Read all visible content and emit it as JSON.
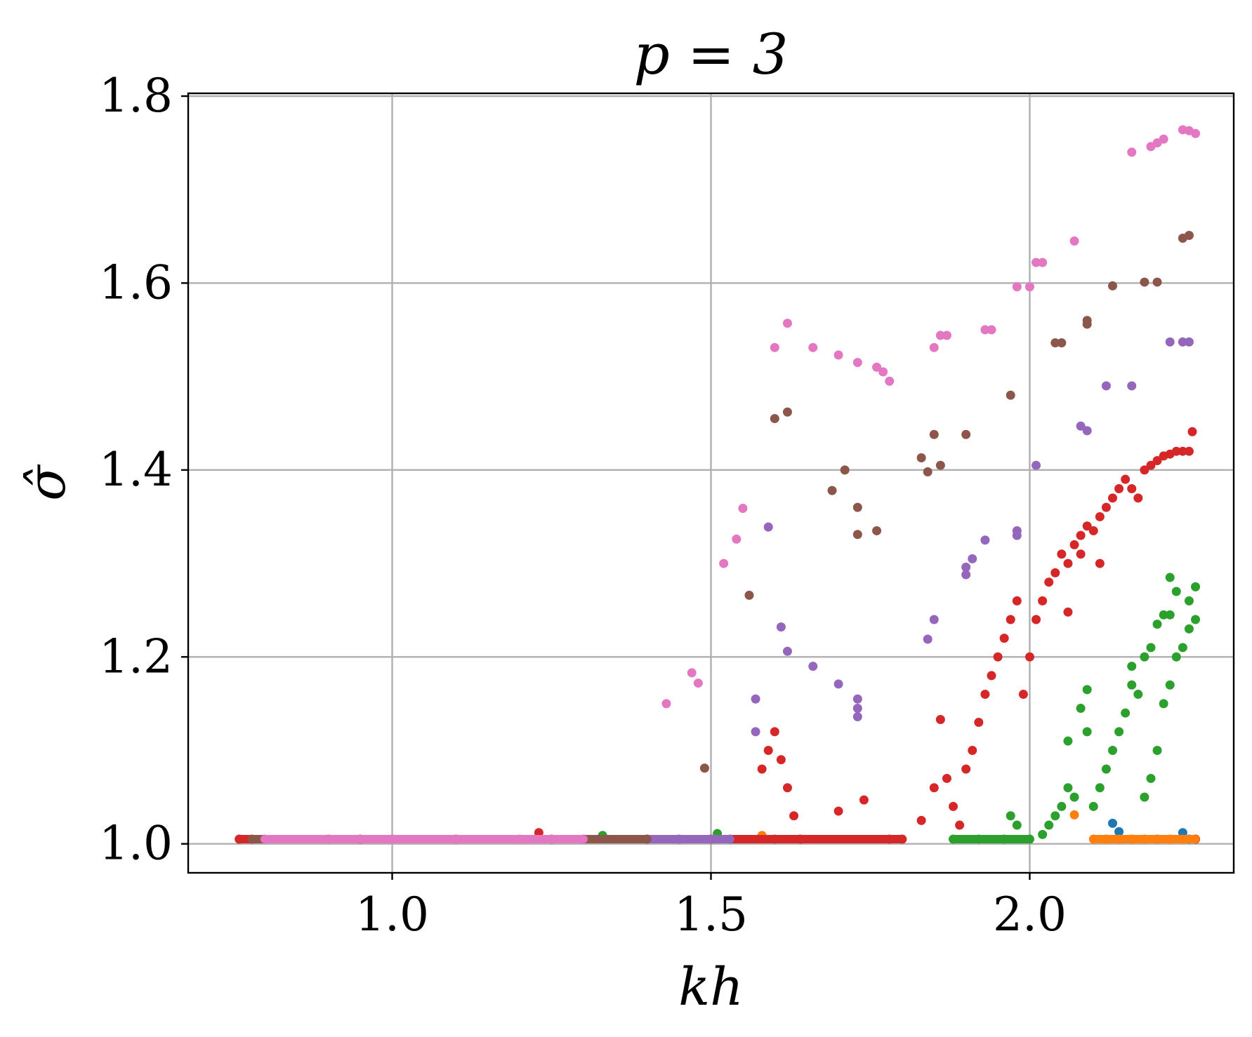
{
  "chart_data": {
    "type": "scatter",
    "title": "p = 3",
    "xlabel": "kh",
    "ylabel": "σ̂",
    "xlim": [
      0.68,
      2.32
    ],
    "ylim": [
      0.969,
      1.803
    ],
    "xticks": [
      1.0,
      1.5,
      2.0
    ],
    "yticks": [
      1.0,
      1.2,
      1.4,
      1.6,
      1.8
    ],
    "xtick_labels": [
      "1.0",
      "1.5",
      "2.0"
    ],
    "ytick_labels": [
      "1.0",
      "1.2",
      "1.4",
      "1.6",
      "1.8"
    ],
    "grid": true,
    "legend": "none",
    "colors": [
      "#1f77b4",
      "#ff7f0e",
      "#2ca02c",
      "#d62728",
      "#9467bd",
      "#8c564b",
      "#e377c2"
    ],
    "series": [
      {
        "color": "#1f77b4",
        "points": [
          [
            2.13,
            1.022
          ],
          [
            2.14,
            1.013
          ],
          [
            2.24,
            1.012
          ],
          [
            2.25,
            1.005
          ],
          [
            2.2,
            1.005
          ]
        ]
      },
      {
        "color": "#ff7f0e",
        "points": [
          [
            1.58,
            1.009
          ],
          [
            2.07,
            1.031
          ],
          [
            2.1,
            1.005
          ],
          [
            2.12,
            1.005
          ],
          [
            2.14,
            1.005
          ],
          [
            2.16,
            1.005
          ],
          [
            2.18,
            1.005
          ],
          [
            2.2,
            1.005
          ],
          [
            2.22,
            1.005
          ],
          [
            2.24,
            1.005
          ],
          [
            2.26,
            1.005
          ]
        ]
      },
      {
        "color": "#2ca02c",
        "points": [
          [
            1.33,
            1.009
          ],
          [
            1.51,
            1.011
          ],
          [
            1.6,
            1.005
          ],
          [
            1.88,
            1.005
          ],
          [
            1.92,
            1.005
          ],
          [
            1.96,
            1.005
          ],
          [
            1.97,
            1.03
          ],
          [
            1.98,
            1.02
          ],
          [
            2.0,
            1.005
          ],
          [
            2.02,
            1.01
          ],
          [
            2.03,
            1.02
          ],
          [
            2.04,
            1.03
          ],
          [
            2.05,
            1.04
          ],
          [
            2.06,
            1.06
          ],
          [
            2.06,
            1.11
          ],
          [
            2.07,
            1.05
          ],
          [
            2.08,
            1.145
          ],
          [
            2.09,
            1.165
          ],
          [
            2.09,
            1.12
          ],
          [
            2.1,
            1.04
          ],
          [
            2.11,
            1.06
          ],
          [
            2.12,
            1.08
          ],
          [
            2.13,
            1.1
          ],
          [
            2.14,
            1.12
          ],
          [
            2.15,
            1.14
          ],
          [
            2.16,
            1.17
          ],
          [
            2.16,
            1.19
          ],
          [
            2.17,
            1.16
          ],
          [
            2.18,
            1.2
          ],
          [
            2.18,
            1.05
          ],
          [
            2.19,
            1.07
          ],
          [
            2.2,
            1.1
          ],
          [
            2.21,
            1.15
          ],
          [
            2.22,
            1.17
          ],
          [
            2.22,
            1.245
          ],
          [
            2.23,
            1.27
          ],
          [
            2.23,
            1.2
          ],
          [
            2.24,
            1.21
          ],
          [
            2.25,
            1.23
          ],
          [
            2.25,
            1.26
          ],
          [
            2.26,
            1.275
          ],
          [
            2.26,
            1.24
          ],
          [
            2.22,
            1.285
          ],
          [
            2.21,
            1.245
          ],
          [
            2.2,
            1.235
          ],
          [
            2.19,
            1.21
          ]
        ]
      },
      {
        "color": "#d62728",
        "points": [
          [
            0.76,
            1.005
          ],
          [
            0.9,
            1.005
          ],
          [
            1.0,
            1.005
          ],
          [
            1.1,
            1.005
          ],
          [
            1.23,
            1.012
          ],
          [
            1.3,
            1.005
          ],
          [
            1.4,
            1.005
          ],
          [
            1.5,
            1.005
          ],
          [
            1.58,
            1.08
          ],
          [
            1.59,
            1.1
          ],
          [
            1.6,
            1.12
          ],
          [
            1.61,
            1.09
          ],
          [
            1.62,
            1.06
          ],
          [
            1.63,
            1.03
          ],
          [
            1.64,
            1.005
          ],
          [
            1.7,
            1.035
          ],
          [
            1.74,
            1.047
          ],
          [
            1.78,
            1.005
          ],
          [
            1.8,
            1.005
          ],
          [
            1.83,
            1.025
          ],
          [
            1.85,
            1.06
          ],
          [
            1.86,
            1.133
          ],
          [
            1.87,
            1.07
          ],
          [
            1.88,
            1.04
          ],
          [
            1.89,
            1.02
          ],
          [
            1.9,
            1.08
          ],
          [
            1.91,
            1.1
          ],
          [
            1.92,
            1.13
          ],
          [
            1.93,
            1.16
          ],
          [
            1.94,
            1.18
          ],
          [
            1.95,
            1.2
          ],
          [
            1.96,
            1.22
          ],
          [
            1.97,
            1.24
          ],
          [
            1.98,
            1.26
          ],
          [
            1.99,
            1.16
          ],
          [
            2.0,
            1.2
          ],
          [
            2.01,
            1.24
          ],
          [
            2.02,
            1.26
          ],
          [
            2.03,
            1.28
          ],
          [
            2.04,
            1.29
          ],
          [
            2.05,
            1.31
          ],
          [
            2.06,
            1.3
          ],
          [
            2.07,
            1.32
          ],
          [
            2.08,
            1.33
          ],
          [
            2.09,
            1.34
          ],
          [
            2.1,
            1.335
          ],
          [
            2.11,
            1.35
          ],
          [
            2.12,
            1.36
          ],
          [
            2.13,
            1.37
          ],
          [
            2.14,
            1.38
          ],
          [
            2.15,
            1.39
          ],
          [
            2.16,
            1.38
          ],
          [
            2.17,
            1.37
          ],
          [
            2.18,
            1.4
          ],
          [
            2.19,
            1.405
          ],
          [
            2.2,
            1.41
          ],
          [
            2.21,
            1.415
          ],
          [
            2.22,
            1.417
          ],
          [
            2.23,
            1.42
          ],
          [
            2.24,
            1.42
          ],
          [
            2.25,
            1.42
          ],
          [
            2.255,
            1.441
          ],
          [
            2.26,
            1.005
          ],
          [
            2.06,
            1.248
          ],
          [
            2.08,
            1.31
          ],
          [
            2.11,
            1.3
          ]
        ]
      },
      {
        "color": "#9467bd",
        "points": [
          [
            1.0,
            1.005
          ],
          [
            1.3,
            1.005
          ],
          [
            1.45,
            1.005
          ],
          [
            1.53,
            1.005
          ],
          [
            1.57,
            1.12
          ],
          [
            1.57,
            1.155
          ],
          [
            1.59,
            1.339
          ],
          [
            1.61,
            1.232
          ],
          [
            1.62,
            1.206
          ],
          [
            1.66,
            1.19
          ],
          [
            1.7,
            1.171
          ],
          [
            1.73,
            1.145
          ],
          [
            1.73,
            1.155
          ],
          [
            1.73,
            1.136
          ],
          [
            1.84,
            1.219
          ],
          [
            1.85,
            1.24
          ],
          [
            1.9,
            1.288
          ],
          [
            1.9,
            1.296
          ],
          [
            1.91,
            1.305
          ],
          [
            1.93,
            1.325
          ],
          [
            1.98,
            1.33
          ],
          [
            1.98,
            1.335
          ],
          [
            2.01,
            1.405
          ],
          [
            2.08,
            1.447
          ],
          [
            2.09,
            1.442
          ],
          [
            2.12,
            1.49
          ],
          [
            2.16,
            1.49
          ],
          [
            2.22,
            1.537
          ],
          [
            2.24,
            1.537
          ],
          [
            2.25,
            1.537
          ]
        ]
      },
      {
        "color": "#8c564b",
        "points": [
          [
            0.78,
            1.005
          ],
          [
            0.95,
            1.005
          ],
          [
            1.1,
            1.005
          ],
          [
            1.25,
            1.005
          ],
          [
            1.4,
            1.005
          ],
          [
            1.49,
            1.081
          ],
          [
            1.56,
            1.266
          ],
          [
            1.6,
            1.455
          ],
          [
            1.62,
            1.462
          ],
          [
            1.69,
            1.378
          ],
          [
            1.71,
            1.4
          ],
          [
            1.73,
            1.36
          ],
          [
            1.73,
            1.331
          ],
          [
            1.76,
            1.335
          ],
          [
            1.83,
            1.413
          ],
          [
            1.84,
            1.398
          ],
          [
            1.85,
            1.438
          ],
          [
            1.86,
            1.405
          ],
          [
            1.9,
            1.438
          ],
          [
            1.97,
            1.48
          ],
          [
            2.04,
            1.536
          ],
          [
            2.05,
            1.536
          ],
          [
            2.09,
            1.556
          ],
          [
            2.09,
            1.56
          ],
          [
            2.13,
            1.597
          ],
          [
            2.18,
            1.601
          ],
          [
            2.2,
            1.601
          ],
          [
            2.24,
            1.648
          ],
          [
            2.25,
            1.651
          ]
        ]
      },
      {
        "color": "#e377c2",
        "points": [
          [
            0.8,
            1.005
          ],
          [
            0.9,
            1.005
          ],
          [
            1.0,
            1.005
          ],
          [
            1.1,
            1.005
          ],
          [
            1.2,
            1.005
          ],
          [
            1.3,
            1.005
          ],
          [
            1.43,
            1.15
          ],
          [
            1.47,
            1.183
          ],
          [
            1.48,
            1.172
          ],
          [
            1.52,
            1.3
          ],
          [
            1.54,
            1.326
          ],
          [
            1.55,
            1.359
          ],
          [
            1.6,
            1.531
          ],
          [
            1.62,
            1.557
          ],
          [
            1.66,
            1.531
          ],
          [
            1.7,
            1.523
          ],
          [
            1.73,
            1.515
          ],
          [
            1.76,
            1.51
          ],
          [
            1.77,
            1.505
          ],
          [
            1.78,
            1.495
          ],
          [
            1.85,
            1.531
          ],
          [
            1.86,
            1.544
          ],
          [
            1.87,
            1.544
          ],
          [
            1.93,
            1.55
          ],
          [
            1.94,
            1.55
          ],
          [
            1.98,
            1.596
          ],
          [
            2.0,
            1.596
          ],
          [
            2.01,
            1.622
          ],
          [
            2.02,
            1.622
          ],
          [
            2.07,
            1.645
          ],
          [
            2.16,
            1.74
          ],
          [
            2.19,
            1.746
          ],
          [
            2.2,
            1.75
          ],
          [
            2.21,
            1.754
          ],
          [
            2.24,
            1.764
          ],
          [
            2.25,
            1.763
          ],
          [
            2.26,
            1.76
          ]
        ]
      }
    ]
  }
}
